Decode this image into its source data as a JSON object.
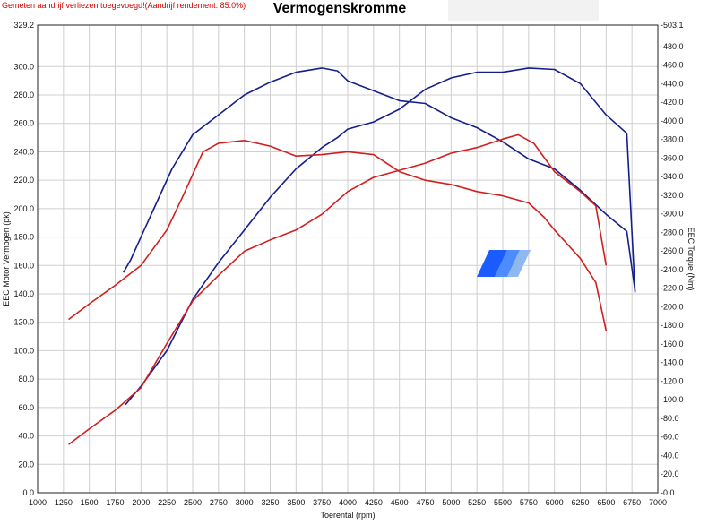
{
  "warning_text": "Gemeten aandrijf verliezen toegevoegd!(Aandrijf rendement: 85.0%)",
  "colors": {
    "blue": "#141e8c",
    "red": "#d21e1e",
    "grid": "#cfcfcf",
    "accent_bar": "#1a5cff"
  },
  "chart_data": {
    "type": "line",
    "title": "Vermogenskromme",
    "xlabel": "Toerental (rpm)",
    "ylabel_left": "EEC Motor Vermogen (pk)",
    "ylabel_right": "EEC Torque (Nm)",
    "xlim": [
      1000,
      7000
    ],
    "ylim_left": [
      0,
      329.2
    ],
    "ylim_right": [
      0,
      503.1
    ],
    "x_ticks": [
      "1000",
      "1250",
      "1500",
      "1750",
      "2000",
      "2250",
      "2500",
      "2750",
      "3000",
      "3250",
      "3500",
      "3750",
      "4000",
      "4250",
      "4500",
      "4750",
      "5000",
      "5250",
      "5500",
      "5750",
      "6000",
      "6250",
      "6500",
      "6750",
      "7000"
    ],
    "y_left_ticks": [
      "329.2",
      "300.0",
      "280.0",
      "260.0",
      "240.0",
      "220.0",
      "200.0",
      "180.0",
      "160.0",
      "140.0",
      "120.0",
      "100.0",
      "80.0",
      "60.0",
      "40.0",
      "20.0",
      "0.0"
    ],
    "y_right_ticks": [
      "503.1",
      "480.0",
      "460.0",
      "440.0",
      "420.0",
      "400.0",
      "380.0",
      "360.0",
      "340.0",
      "320.0",
      "300.0",
      "280.0",
      "260.0",
      "240.0",
      "220.0",
      "200.0",
      "180.0",
      "160.0",
      "140.0",
      "120.0",
      "100.0",
      "80.0",
      "60.0",
      "40.0",
      "20.0",
      "0.0"
    ],
    "grid": true,
    "series": [
      {
        "color_key": "blue",
        "axis": "left",
        "x": [
          1850,
          2000,
          2250,
          2500,
          2750,
          3000,
          3250,
          3500,
          3750,
          3900,
          4000,
          4250,
          4500,
          4750,
          5000,
          5250,
          5500,
          5750,
          6000,
          6250,
          6500,
          6700,
          6780
        ],
        "y": [
          62,
          75,
          100,
          136,
          162,
          185,
          208,
          228,
          243,
          250,
          256,
          261,
          270,
          284,
          292,
          296,
          296,
          299,
          298,
          288,
          266,
          253,
          141
        ]
      },
      {
        "color_key": "blue",
        "axis": "left",
        "x": [
          1830,
          1900,
          2000,
          2150,
          2300,
          2500,
          2750,
          3000,
          3250,
          3500,
          3750,
          3900,
          4000,
          4250,
          4500,
          4750,
          5000,
          5250,
          5500,
          5750,
          6000,
          6250,
          6500,
          6700,
          6780
        ],
        "y": [
          155,
          164,
          180,
          204,
          228,
          252,
          266,
          280,
          289,
          296,
          299,
          297,
          290,
          283,
          276,
          274,
          264,
          257,
          247,
          235,
          228,
          213,
          196,
          184,
          142
        ]
      },
      {
        "color_key": "red",
        "axis": "left",
        "x": [
          1300,
          1500,
          1750,
          2000,
          2250,
          2500,
          2750,
          3000,
          3250,
          3500,
          3750,
          4000,
          4250,
          4500,
          4750,
          5000,
          5250,
          5500,
          5650,
          5800,
          6000,
          6250,
          6400,
          6500
        ],
        "y": [
          34,
          45,
          58,
          74,
          105,
          135,
          153,
          170,
          178,
          185,
          196,
          212,
          222,
          227,
          232,
          239,
          243,
          249,
          252,
          246,
          226,
          212,
          202,
          160
        ]
      },
      {
        "color_key": "red",
        "axis": "left",
        "x": [
          1300,
          1500,
          1750,
          2000,
          2250,
          2400,
          2600,
          2750,
          3000,
          3250,
          3500,
          3750,
          4000,
          4250,
          4500,
          4750,
          5000,
          5250,
          5500,
          5750,
          5900,
          6000,
          6250,
          6400,
          6500
        ],
        "y": [
          122,
          133,
          146,
          160,
          185,
          208,
          240,
          246,
          248,
          244,
          237,
          238,
          240,
          238,
          226,
          220,
          217,
          212,
          209,
          204,
          194,
          185,
          165,
          148,
          114
        ]
      }
    ]
  }
}
